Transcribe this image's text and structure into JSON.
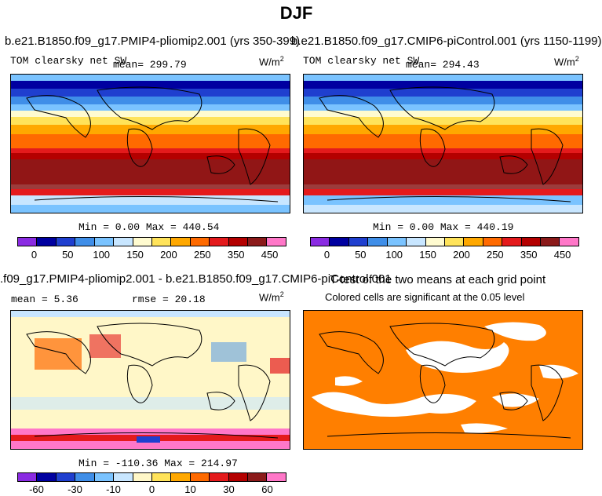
{
  "figure": {
    "title": "DJF"
  },
  "panels": [
    {
      "id": "p1",
      "title": "b.e21.B1850.f09_g17.PMIP4-pliomip2.001 (yrs 350-399)",
      "left_label": "TOM clearsky net SW",
      "mean_label": "mean= 299.79",
      "units": "W/m",
      "units_sup": "2",
      "minmax": "Min =    0.00 Max = 440.54",
      "colorbar": {
        "colors": [
          "#8a2be2",
          "#0000a0",
          "#1f3fcf",
          "#3f8ee8",
          "#7ac3ff",
          "#c8e6ff",
          "#fffbd0",
          "#ffe35a",
          "#ffa800",
          "#ff6a00",
          "#e41a1c",
          "#b40000",
          "#8b1a1a",
          "#ff77c8"
        ],
        "ticks": [
          "0",
          "50",
          "100",
          "150",
          "200",
          "250",
          "350",
          "450"
        ]
      }
    },
    {
      "id": "p2",
      "title": "b.e21.B1850.f09_g17.CMIP6-piControl.001 (yrs 1150-1199)",
      "left_label": "TOM clearsky net SW",
      "mean_label": "mean= 294.43",
      "units": "W/m",
      "units_sup": "2",
      "minmax": "Min =    0.00 Max = 440.19",
      "colorbar": {
        "colors": [
          "#8a2be2",
          "#0000a0",
          "#1f3fcf",
          "#3f8ee8",
          "#7ac3ff",
          "#c8e6ff",
          "#fffbd0",
          "#ffe35a",
          "#ffa800",
          "#ff6a00",
          "#e41a1c",
          "#b40000",
          "#8b1a1a",
          "#ff77c8"
        ],
        "ticks": [
          "0",
          "50",
          "100",
          "150",
          "200",
          "250",
          "350",
          "450"
        ]
      }
    },
    {
      "id": "p3",
      "title": ".f09_g17.PMIP4-pliomip2.001 - b.e21.B1850.f09_g17.CMIP6-piControl.001",
      "mean_label": "mean =    5.36",
      "rmse_label": "rmse =  20.18",
      "units": "W/m",
      "units_sup": "2",
      "minmax": "Min = -110.36 Max = 214.97",
      "colorbar": {
        "colors": [
          "#8a2be2",
          "#0000a0",
          "#1f3fcf",
          "#3f8ee8",
          "#7ac3ff",
          "#c8e6ff",
          "#fff7c8",
          "#ffe35a",
          "#ffa800",
          "#ff6a00",
          "#e41a1c",
          "#b40000",
          "#8b1a1a",
          "#ff77c8"
        ],
        "ticks": [
          "-60",
          "-30",
          "-10",
          "0",
          "10",
          "30",
          "60"
        ]
      }
    },
    {
      "id": "p4",
      "title": "T-test of the two means at each grid point",
      "subtitle": "Colored cells are significant at the 0.05 level",
      "fill_color": "#ff7f00"
    }
  ]
}
